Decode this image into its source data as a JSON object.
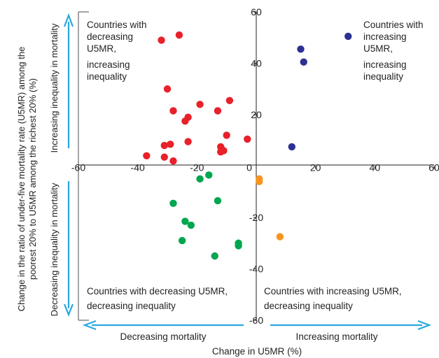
{
  "chart_data": {
    "type": "scatter",
    "title": "",
    "xlabel": "Change in U5MR  (%)",
    "ylabel_line1": "Change in the ratio of under-five mortality rate (U5MR) among the",
    "ylabel_line2": "poorest 20% to U5MR among the richest 20% (%)",
    "xlim": [
      -60,
      60
    ],
    "ylim": [
      -60,
      60
    ],
    "x_ticks": [
      "-60",
      "-40",
      "-20",
      "0",
      "20",
      "40",
      "60"
    ],
    "y_ticks": [
      "60",
      "40",
      "20",
      "-20",
      "-40",
      "-60"
    ],
    "grid": false,
    "quadrant_labels": {
      "top_left": [
        "Countries with",
        "decreasing",
        "U5MR,",
        "increasing",
        "inequality"
      ],
      "top_right": [
        "Countries with",
        "increasing",
        "U5MR,",
        "increasing",
        "inequality"
      ],
      "bottom_left": [
        "Countries with decreasing U5MR,",
        "decreasing inequality"
      ],
      "bottom_right": [
        "Countries with  increasing U5MR,",
        "decreasing inequality"
      ]
    },
    "arrow_labels": {
      "up": "Increasing inequality in mortality",
      "down": "Decreasing inequality in mortality",
      "left": "Decreasing mortality",
      "right": "Increasing mortality"
    },
    "colors": {
      "axis": "#231f20",
      "arrow": "#29a8e0",
      "decreasing_u5mr_increasing_inequality": "#e8212a",
      "increasing_u5mr_increasing_inequality": "#2e3192",
      "decreasing_u5mr_decreasing_inequality": "#00a650",
      "increasing_u5mr_decreasing_inequality": "#f7941d"
    },
    "series": [
      {
        "key": "decreasing_u5mr_increasing_inequality",
        "points": [
          [
            -26,
            51
          ],
          [
            -32,
            49
          ],
          [
            -30,
            30
          ],
          [
            -28,
            21.5
          ],
          [
            -19,
            24
          ],
          [
            -9,
            25.5
          ],
          [
            -23,
            19
          ],
          [
            -24,
            17.5
          ],
          [
            -13,
            21.5
          ],
          [
            -10,
            12
          ],
          [
            -29,
            8.5
          ],
          [
            -23,
            9.5
          ],
          [
            -3,
            10.5
          ],
          [
            -31,
            8
          ],
          [
            -12,
            7.5
          ],
          [
            -11,
            6
          ],
          [
            -12,
            5.5
          ],
          [
            -37,
            4
          ],
          [
            -31,
            3.5
          ],
          [
            -28,
            2
          ]
        ]
      },
      {
        "key": "increasing_u5mr_increasing_inequality",
        "points": [
          [
            31,
            50.5
          ],
          [
            15,
            45.5
          ],
          [
            16,
            40.5
          ],
          [
            12,
            7.5
          ]
        ]
      },
      {
        "key": "decreasing_u5mr_decreasing_inequality",
        "points": [
          [
            -16,
            -3.5
          ],
          [
            -19,
            -5
          ],
          [
            -28,
            -14.5
          ],
          [
            -13,
            -13.5
          ],
          [
            -24,
            -21.5
          ],
          [
            -22,
            -23
          ],
          [
            -25,
            -29
          ],
          [
            -6,
            -30
          ],
          [
            -6,
            -31
          ],
          [
            -14,
            -35
          ]
        ]
      },
      {
        "key": "increasing_u5mr_decreasing_inequality",
        "points": [
          [
            1,
            -5
          ],
          [
            1,
            -6
          ],
          [
            8,
            -27.5
          ]
        ]
      }
    ]
  }
}
